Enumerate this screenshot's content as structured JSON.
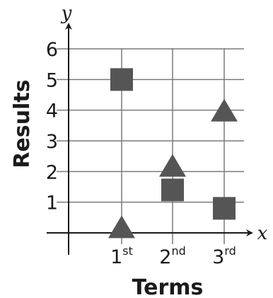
{
  "chart_data": {
    "type": "scatter",
    "xlabel": "Terms",
    "ylabel": "Results",
    "x_axis_var": "x",
    "y_axis_var": "y",
    "x_categories": [
      {
        "base": "1",
        "sup": "st"
      },
      {
        "base": "2",
        "sup": "nd"
      },
      {
        "base": "3",
        "sup": "rd"
      }
    ],
    "y_ticks": [
      "1",
      "2",
      "3",
      "4",
      "5",
      "6"
    ],
    "ylim": [
      0,
      6
    ],
    "grid": true,
    "series": [
      {
        "marker": "square",
        "color": "#555555",
        "points": [
          {
            "x": 1,
            "y": 5
          },
          {
            "x": 2,
            "y": 1.4
          },
          {
            "x": 3,
            "y": 0.8
          }
        ]
      },
      {
        "marker": "triangle",
        "color": "#555555",
        "points": [
          {
            "x": 1,
            "y": 0.2
          },
          {
            "x": 2,
            "y": 2.2
          },
          {
            "x": 3,
            "y": 4
          }
        ]
      }
    ]
  }
}
